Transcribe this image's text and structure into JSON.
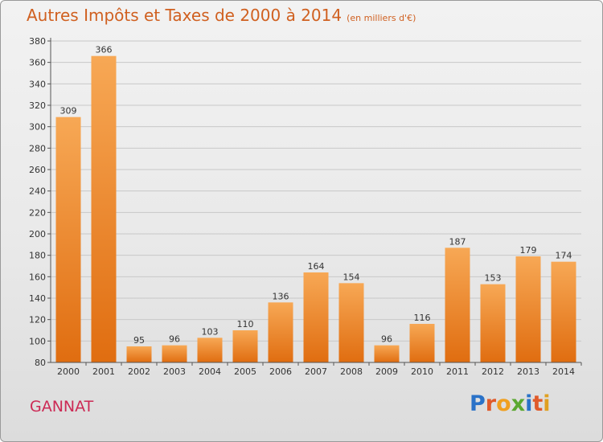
{
  "header": {
    "title": "Autres Impôts et Taxes de 2000 à 2014",
    "subtitle": "(en milliers d'€)"
  },
  "footer": {
    "place": "GANNAT",
    "logo": "Proxiti",
    "logo_colors": [
      "#2a72c8",
      "#e05a2a",
      "#f0a020",
      "#5aa830",
      "#2a72c8",
      "#e05a2a",
      "#e0a020"
    ]
  },
  "chart_data": {
    "type": "bar",
    "title": "Autres Impôts et Taxes de 2000 à 2014",
    "subtitle": "(en milliers d'€)",
    "xlabel": "",
    "ylabel": "",
    "categories": [
      "2000",
      "2001",
      "2002",
      "2003",
      "2004",
      "2005",
      "2006",
      "2007",
      "2008",
      "2009",
      "2010",
      "2011",
      "2012",
      "2013",
      "2014"
    ],
    "values": [
      309,
      366,
      95,
      96,
      103,
      110,
      136,
      164,
      154,
      96,
      116,
      187,
      153,
      179,
      174
    ],
    "ylim": [
      80,
      380
    ],
    "yticks": [
      80,
      100,
      120,
      140,
      160,
      180,
      200,
      220,
      240,
      260,
      280,
      300,
      320,
      340,
      360,
      380
    ],
    "grid": "horizontal",
    "colors": {
      "bar_top": "#f7a855",
      "bar_bottom": "#e06d10",
      "grid": "#c8c8c8",
      "text": "#333333"
    }
  }
}
